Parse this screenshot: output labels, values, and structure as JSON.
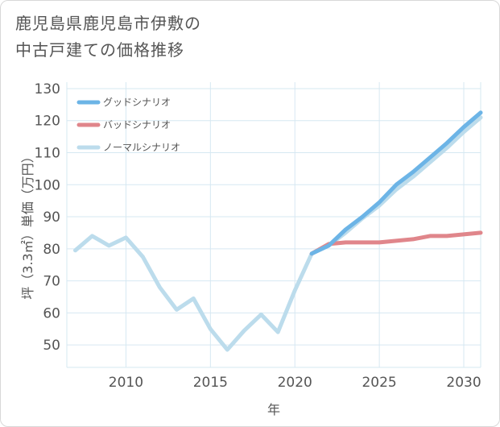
{
  "title_lines": [
    "鹿児島県鹿児島市伊敷の",
    "中古戸建ての価格推移"
  ],
  "chart_data": {
    "type": "line",
    "title": "鹿児島県鹿児島市伊敷の中古戸建ての価格推移",
    "xlabel": "年",
    "ylabel": "坪（3.3㎡）単価（万円）",
    "xlim": [
      2006.5,
      2031
    ],
    "ylim": [
      43,
      132
    ],
    "x_ticks": [
      2010,
      2015,
      2020,
      2025,
      2030
    ],
    "y_ticks": [
      50,
      60,
      70,
      80,
      90,
      100,
      110,
      120,
      130
    ],
    "grid": true,
    "legend_position": "top-left",
    "series": [
      {
        "name": "グッドシナリオ",
        "color": "#6cb4e6",
        "x": [
          2021,
          2022,
          2023,
          2024,
          2025,
          2026,
          2027,
          2028,
          2029,
          2030,
          2031
        ],
        "values": [
          78.5,
          81,
          86,
          90,
          94.5,
          100,
          104,
          108.5,
          113,
          118,
          122.5
        ]
      },
      {
        "name": "バッドシナリオ",
        "color": "#e0868b",
        "x": [
          2021,
          2022,
          2023,
          2024,
          2025,
          2026,
          2027,
          2028,
          2029,
          2030,
          2031
        ],
        "values": [
          78.5,
          81.5,
          82,
          82,
          82,
          82.5,
          83,
          84,
          84,
          84.5,
          85
        ]
      },
      {
        "name": "ノーマルシナリオ",
        "color": "#bcdcec",
        "x": [
          2007,
          2008,
          2009,
          2010,
          2011,
          2012,
          2013,
          2014,
          2015,
          2016,
          2017,
          2018,
          2019,
          2020,
          2021,
          2022,
          2023,
          2024,
          2025,
          2026,
          2027,
          2028,
          2029,
          2030,
          2031
        ],
        "values": [
          79.5,
          84,
          81,
          83.5,
          77.5,
          68,
          61,
          64.5,
          55,
          48.5,
          54.5,
          59.5,
          54,
          67,
          78.5,
          81,
          85,
          89.5,
          93.5,
          98.5,
          102.5,
          107,
          111.5,
          116.5,
          121
        ]
      }
    ]
  }
}
